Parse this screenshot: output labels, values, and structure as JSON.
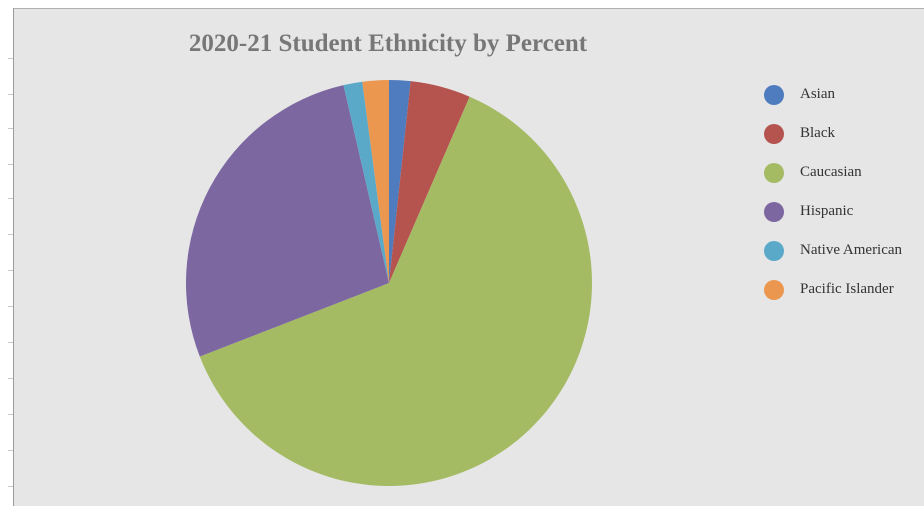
{
  "chart_data": {
    "type": "pie",
    "title": "2020-21 Student Ethnicity by Percent",
    "categories": [
      "Asian",
      "Black",
      "Caucasian",
      "Hispanic",
      "Native American",
      "Pacific Islander"
    ],
    "values": [
      1.7,
      4.8,
      62.6,
      27.3,
      1.5,
      2.1
    ],
    "unit": "percent",
    "colors": [
      "#4f7cbf",
      "#b5534f",
      "#a4bb64",
      "#7c67a0",
      "#5ba9c8",
      "#eb974f"
    ],
    "legend_position": "right",
    "start_angle": "12 o'clock, clockwise"
  }
}
